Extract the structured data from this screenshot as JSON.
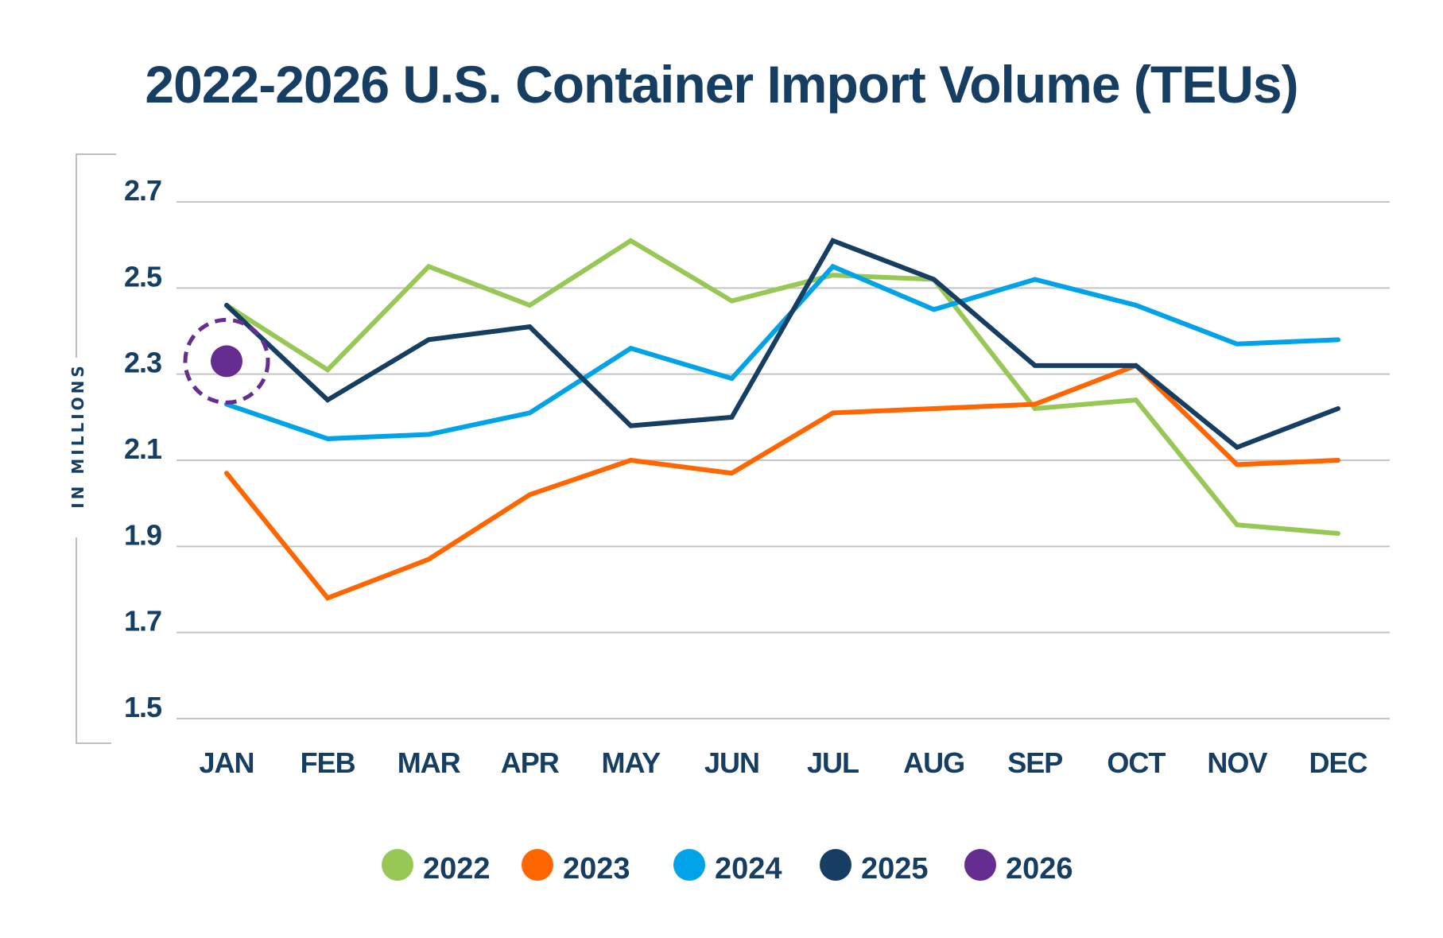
{
  "chart_data": {
    "type": "line",
    "title": "2022-2026 U.S. Container Import Volume (TEUs)",
    "ylabel": "IN MILLIONS",
    "xlabel": "",
    "categories": [
      "JAN",
      "FEB",
      "MAR",
      "APR",
      "MAY",
      "JUN",
      "JUL",
      "AUG",
      "SEP",
      "OCT",
      "NOV",
      "DEC"
    ],
    "ylim": [
      1.5,
      2.7
    ],
    "yticks": [
      "2.7",
      "2.5",
      "2.3",
      "2.1",
      "1.9",
      "1.7",
      "1.5"
    ],
    "grid": true,
    "legend_position": "bottom",
    "series": [
      {
        "name": "2022",
        "color": "#97c855",
        "values": [
          2.46,
          2.31,
          2.55,
          2.46,
          2.61,
          2.47,
          2.53,
          2.52,
          2.22,
          2.24,
          1.95,
          1.93
        ]
      },
      {
        "name": "2023",
        "color": "#ff6600",
        "values": [
          2.07,
          1.78,
          1.87,
          2.02,
          2.1,
          2.07,
          2.21,
          2.22,
          2.23,
          2.32,
          2.09,
          2.1
        ]
      },
      {
        "name": "2024",
        "color": "#00a3e8",
        "values": [
          2.23,
          2.15,
          2.16,
          2.21,
          2.36,
          2.29,
          2.55,
          2.45,
          2.52,
          2.46,
          2.37,
          2.38
        ]
      },
      {
        "name": "2025",
        "color": "#163e63",
        "values": [
          2.46,
          2.24,
          2.38,
          2.41,
          2.18,
          2.2,
          2.61,
          2.52,
          2.32,
          2.32,
          2.13,
          2.22
        ]
      },
      {
        "name": "2026",
        "color": "#662d91",
        "values": [
          2.33,
          null,
          null,
          null,
          null,
          null,
          null,
          null,
          null,
          null,
          null,
          null
        ],
        "highlighted": true
      }
    ]
  }
}
